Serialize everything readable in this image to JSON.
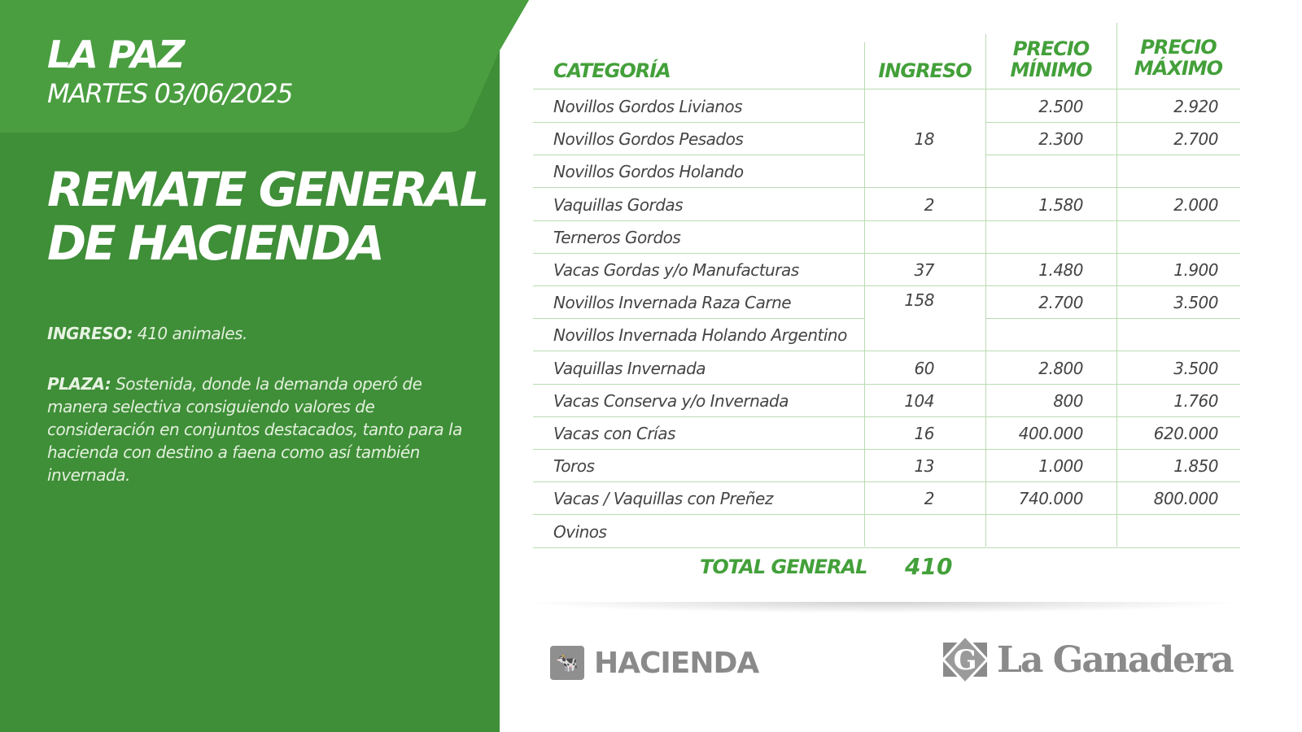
{
  "colors": {
    "panel_dark": "#3f8e38",
    "panel_light": "#4a9e40",
    "accent": "#43a03a",
    "text": "#444444",
    "logo_gray": "#8a8a8a"
  },
  "left": {
    "city": "LA PAZ",
    "date": "MARTES 03/06/2025",
    "title_line1": "REMATE GENERAL",
    "title_line2": "DE HACIENDA",
    "ingreso_label": "INGRESO:",
    "ingreso_text": " 410 animales.",
    "plaza_label": "PLAZA:",
    "plaza_text": " Sostenida, donde la demanda operó de manera selectiva consiguiendo valores de consideración en conjuntos destacados, tanto para la hacienda con destino a faena como así también invernada."
  },
  "table": {
    "headers": {
      "categoria": "CATEGORÍA",
      "ingreso": "INGRESO",
      "min_line1": "PRECIO",
      "min_line2": "MÍNIMO",
      "max_line1": "PRECIO",
      "max_line2": "MÁXIMO"
    },
    "rows": [
      {
        "cat": "Novillos Gordos Livianos",
        "ing": "",
        "min": "2.500",
        "max": "2.920"
      },
      {
        "cat": "Novillos Gordos Pesados",
        "ing": "18",
        "min": "2.300",
        "max": "2.700"
      },
      {
        "cat": "Novillos Gordos Holando",
        "ing": "",
        "min": "",
        "max": ""
      },
      {
        "cat": "Vaquillas Gordas",
        "ing": "2",
        "min": "1.580",
        "max": "2.000"
      },
      {
        "cat": "Terneros Gordos",
        "ing": "",
        "min": "",
        "max": ""
      },
      {
        "cat": "Vacas Gordas y/o Manufacturas",
        "ing": "37",
        "min": "1.480",
        "max": "1.900"
      },
      {
        "cat": "Novillos Invernada Raza Carne",
        "ing": "158",
        "min": "2.700",
        "max": "3.500"
      },
      {
        "cat": "Novillos Invernada Holando Argentino",
        "ing": "",
        "min": "",
        "max": ""
      },
      {
        "cat": "Vaquillas Invernada",
        "ing": "60",
        "min": "2.800",
        "max": "3.500"
      },
      {
        "cat": "Vacas Conserva y/o Invernada",
        "ing": "104",
        "min": "800",
        "max": "1.760"
      },
      {
        "cat": "Vacas con Crías",
        "ing": "16",
        "min": "400.000",
        "max": "620.000"
      },
      {
        "cat": "Toros",
        "ing": "13",
        "min": "1.000",
        "max": "1.850"
      },
      {
        "cat": "Vacas / Vaquillas con Preñez",
        "ing": "2",
        "min": "740.000",
        "max": "800.000"
      },
      {
        "cat": "Ovinos",
        "ing": "",
        "min": "",
        "max": ""
      }
    ],
    "total_label": "TOTAL GENERAL",
    "total_value": "410"
  },
  "footer": {
    "hacienda_icon": "cow-icon",
    "hacienda_label": "HACIENDA",
    "brand": "La Ganadera",
    "brand_icon": "g-diamond-logo"
  }
}
